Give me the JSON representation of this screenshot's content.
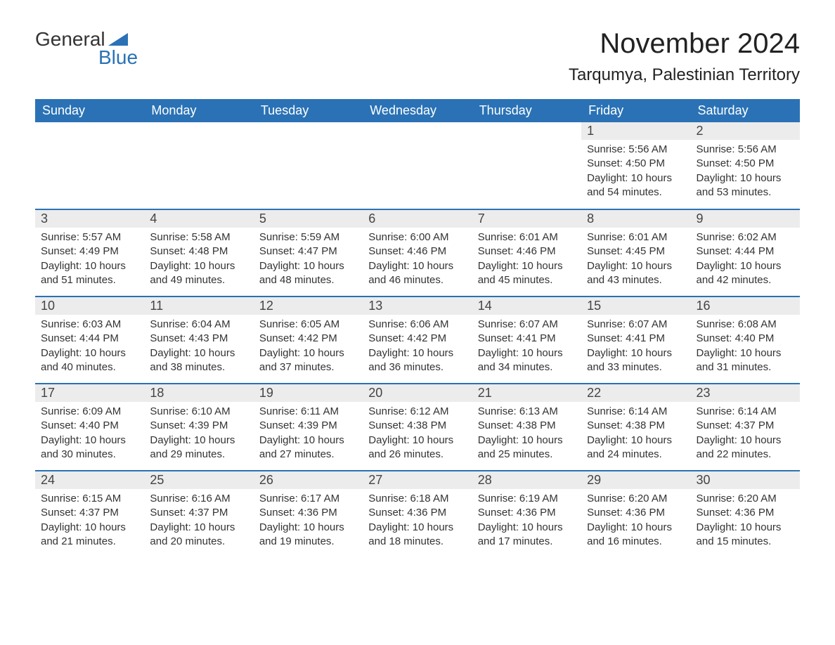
{
  "brand": {
    "word1": "General",
    "word2": "Blue",
    "word1_color": "#333333",
    "word2_color": "#2a72b5",
    "triangle_color": "#2a72b5"
  },
  "title": "November 2024",
  "location": "Tarqumya, Palestinian Territory",
  "colors": {
    "header_bg": "#2a72b5",
    "header_text": "#ffffff",
    "daynum_bg": "#ececec",
    "daynum_text": "#444444",
    "border": "#2a72b5",
    "body_text": "#333333",
    "page_bg": "#ffffff"
  },
  "typography": {
    "month_title_size": 40,
    "location_size": 24,
    "weekday_size": 18,
    "daynum_size": 18,
    "content_size": 15,
    "logo_size": 28
  },
  "weekdays": [
    "Sunday",
    "Monday",
    "Tuesday",
    "Wednesday",
    "Thursday",
    "Friday",
    "Saturday"
  ],
  "weeks": [
    [
      null,
      null,
      null,
      null,
      null,
      {
        "n": "1",
        "sunrise": "Sunrise: 5:56 AM",
        "sunset": "Sunset: 4:50 PM",
        "daylight": "Daylight: 10 hours and 54 minutes."
      },
      {
        "n": "2",
        "sunrise": "Sunrise: 5:56 AM",
        "sunset": "Sunset: 4:50 PM",
        "daylight": "Daylight: 10 hours and 53 minutes."
      }
    ],
    [
      {
        "n": "3",
        "sunrise": "Sunrise: 5:57 AM",
        "sunset": "Sunset: 4:49 PM",
        "daylight": "Daylight: 10 hours and 51 minutes."
      },
      {
        "n": "4",
        "sunrise": "Sunrise: 5:58 AM",
        "sunset": "Sunset: 4:48 PM",
        "daylight": "Daylight: 10 hours and 49 minutes."
      },
      {
        "n": "5",
        "sunrise": "Sunrise: 5:59 AM",
        "sunset": "Sunset: 4:47 PM",
        "daylight": "Daylight: 10 hours and 48 minutes."
      },
      {
        "n": "6",
        "sunrise": "Sunrise: 6:00 AM",
        "sunset": "Sunset: 4:46 PM",
        "daylight": "Daylight: 10 hours and 46 minutes."
      },
      {
        "n": "7",
        "sunrise": "Sunrise: 6:01 AM",
        "sunset": "Sunset: 4:46 PM",
        "daylight": "Daylight: 10 hours and 45 minutes."
      },
      {
        "n": "8",
        "sunrise": "Sunrise: 6:01 AM",
        "sunset": "Sunset: 4:45 PM",
        "daylight": "Daylight: 10 hours and 43 minutes."
      },
      {
        "n": "9",
        "sunrise": "Sunrise: 6:02 AM",
        "sunset": "Sunset: 4:44 PM",
        "daylight": "Daylight: 10 hours and 42 minutes."
      }
    ],
    [
      {
        "n": "10",
        "sunrise": "Sunrise: 6:03 AM",
        "sunset": "Sunset: 4:44 PM",
        "daylight": "Daylight: 10 hours and 40 minutes."
      },
      {
        "n": "11",
        "sunrise": "Sunrise: 6:04 AM",
        "sunset": "Sunset: 4:43 PM",
        "daylight": "Daylight: 10 hours and 38 minutes."
      },
      {
        "n": "12",
        "sunrise": "Sunrise: 6:05 AM",
        "sunset": "Sunset: 4:42 PM",
        "daylight": "Daylight: 10 hours and 37 minutes."
      },
      {
        "n": "13",
        "sunrise": "Sunrise: 6:06 AM",
        "sunset": "Sunset: 4:42 PM",
        "daylight": "Daylight: 10 hours and 36 minutes."
      },
      {
        "n": "14",
        "sunrise": "Sunrise: 6:07 AM",
        "sunset": "Sunset: 4:41 PM",
        "daylight": "Daylight: 10 hours and 34 minutes."
      },
      {
        "n": "15",
        "sunrise": "Sunrise: 6:07 AM",
        "sunset": "Sunset: 4:41 PM",
        "daylight": "Daylight: 10 hours and 33 minutes."
      },
      {
        "n": "16",
        "sunrise": "Sunrise: 6:08 AM",
        "sunset": "Sunset: 4:40 PM",
        "daylight": "Daylight: 10 hours and 31 minutes."
      }
    ],
    [
      {
        "n": "17",
        "sunrise": "Sunrise: 6:09 AM",
        "sunset": "Sunset: 4:40 PM",
        "daylight": "Daylight: 10 hours and 30 minutes."
      },
      {
        "n": "18",
        "sunrise": "Sunrise: 6:10 AM",
        "sunset": "Sunset: 4:39 PM",
        "daylight": "Daylight: 10 hours and 29 minutes."
      },
      {
        "n": "19",
        "sunrise": "Sunrise: 6:11 AM",
        "sunset": "Sunset: 4:39 PM",
        "daylight": "Daylight: 10 hours and 27 minutes."
      },
      {
        "n": "20",
        "sunrise": "Sunrise: 6:12 AM",
        "sunset": "Sunset: 4:38 PM",
        "daylight": "Daylight: 10 hours and 26 minutes."
      },
      {
        "n": "21",
        "sunrise": "Sunrise: 6:13 AM",
        "sunset": "Sunset: 4:38 PM",
        "daylight": "Daylight: 10 hours and 25 minutes."
      },
      {
        "n": "22",
        "sunrise": "Sunrise: 6:14 AM",
        "sunset": "Sunset: 4:38 PM",
        "daylight": "Daylight: 10 hours and 24 minutes."
      },
      {
        "n": "23",
        "sunrise": "Sunrise: 6:14 AM",
        "sunset": "Sunset: 4:37 PM",
        "daylight": "Daylight: 10 hours and 22 minutes."
      }
    ],
    [
      {
        "n": "24",
        "sunrise": "Sunrise: 6:15 AM",
        "sunset": "Sunset: 4:37 PM",
        "daylight": "Daylight: 10 hours and 21 minutes."
      },
      {
        "n": "25",
        "sunrise": "Sunrise: 6:16 AM",
        "sunset": "Sunset: 4:37 PM",
        "daylight": "Daylight: 10 hours and 20 minutes."
      },
      {
        "n": "26",
        "sunrise": "Sunrise: 6:17 AM",
        "sunset": "Sunset: 4:36 PM",
        "daylight": "Daylight: 10 hours and 19 minutes."
      },
      {
        "n": "27",
        "sunrise": "Sunrise: 6:18 AM",
        "sunset": "Sunset: 4:36 PM",
        "daylight": "Daylight: 10 hours and 18 minutes."
      },
      {
        "n": "28",
        "sunrise": "Sunrise: 6:19 AM",
        "sunset": "Sunset: 4:36 PM",
        "daylight": "Daylight: 10 hours and 17 minutes."
      },
      {
        "n": "29",
        "sunrise": "Sunrise: 6:20 AM",
        "sunset": "Sunset: 4:36 PM",
        "daylight": "Daylight: 10 hours and 16 minutes."
      },
      {
        "n": "30",
        "sunrise": "Sunrise: 6:20 AM",
        "sunset": "Sunset: 4:36 PM",
        "daylight": "Daylight: 10 hours and 15 minutes."
      }
    ]
  ]
}
